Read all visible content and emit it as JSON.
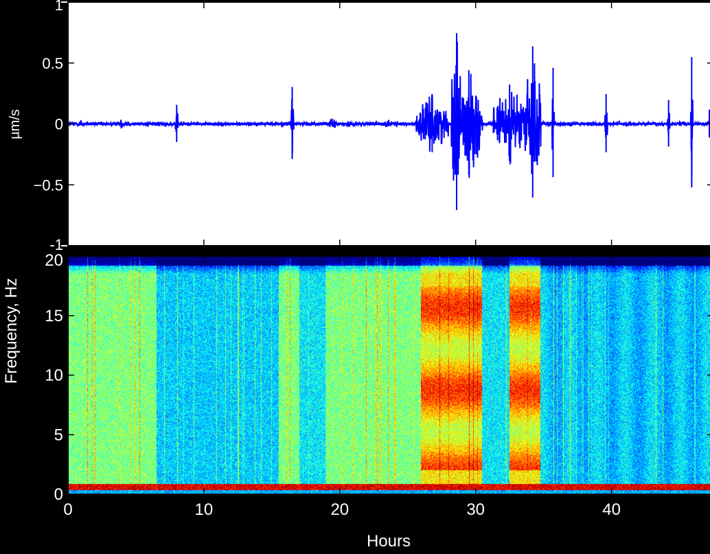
{
  "colors": {
    "background": "#000000",
    "waveform": "#0000ff",
    "frame": "#000000",
    "panel_bg": "#ffffff",
    "text": "#ffffff"
  },
  "chart_data": [
    {
      "type": "line",
      "title": "",
      "xlabel": "",
      "ylabel": "µm/s",
      "xlim": [
        0,
        47.5
      ],
      "ylim": [
        -1,
        1
      ],
      "grid": false,
      "yticks": [
        -1,
        -0.5,
        0,
        0.5,
        1
      ],
      "ytick_labels": [
        "-1",
        "−0.5",
        "0",
        "0.5",
        "1"
      ],
      "xticks": [
        0,
        10,
        20,
        30,
        40
      ],
      "series": [
        {
          "values_note": "",
          "background_noise": 0.015,
          "bursts": [
            {
              "t": 0.9,
              "amp": 0.05,
              "dur": 0.15
            },
            {
              "t": 3.9,
              "amp": 0.04,
              "dur": 0.15
            },
            {
              "t": 8.0,
              "amp": 0.16,
              "dur": 0.1
            },
            {
              "t": 16.5,
              "amp": 0.31,
              "dur": 0.12
            },
            {
              "t": 19.5,
              "amp": 0.08,
              "dur": 0.25
            },
            {
              "t": 23.5,
              "amp": 0.05,
              "dur": 0.2
            },
            {
              "t": 26.8,
              "amp": 0.25,
              "dur": 1.2
            },
            {
              "t": 28.6,
              "amp": 0.76,
              "dur": 0.4
            },
            {
              "t": 29.5,
              "amp": 0.45,
              "dur": 1.0
            },
            {
              "t": 32.5,
              "amp": 0.33,
              "dur": 1.2
            },
            {
              "t": 34.2,
              "amp": 0.65,
              "dur": 0.6
            },
            {
              "t": 35.7,
              "amp": 0.47,
              "dur": 0.08
            },
            {
              "t": 39.6,
              "amp": 0.25,
              "dur": 0.1
            },
            {
              "t": 44.2,
              "amp": 0.2,
              "dur": 0.1
            },
            {
              "t": 45.9,
              "amp": 0.56,
              "dur": 0.08
            },
            {
              "t": 47.2,
              "amp": 0.12,
              "dur": 0.1
            }
          ]
        }
      ]
    },
    {
      "type": "heatmap",
      "title": "",
      "xlabel": "Hours",
      "ylabel": "Frequency, Hz",
      "xlim": [
        0,
        47.5
      ],
      "ylim": [
        0,
        20
      ],
      "xticks": [
        0,
        10,
        20,
        30,
        40
      ],
      "xtick_labels": [
        "0",
        "10",
        "20",
        "30",
        "40"
      ],
      "yticks": [
        0,
        5,
        10,
        15,
        20
      ],
      "ytick_labels": [
        "0",
        "5",
        "10",
        "15",
        "20"
      ],
      "colormap": "jet",
      "high_energy_bands_hours": [
        [
          26,
          30.5
        ],
        [
          32.5,
          34.8
        ]
      ],
      "moderate_energy_bands_hours": [
        [
          0,
          6.5
        ],
        [
          15.5,
          17
        ],
        [
          19,
          26
        ]
      ],
      "dominant_low_freq_line_hz": 0.5,
      "rolloff_freq_hz": 18.5
    }
  ]
}
